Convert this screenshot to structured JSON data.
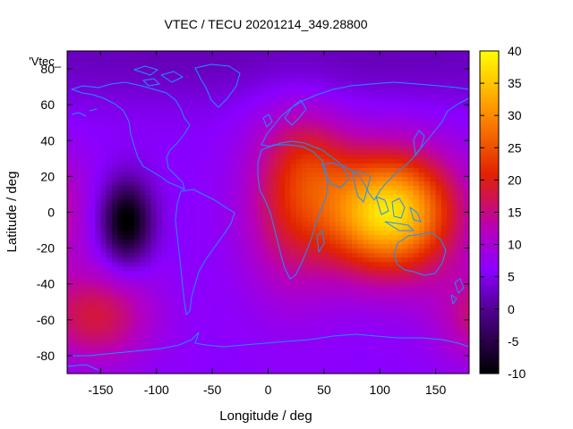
{
  "chart_data": {
    "type": "heatmap",
    "title": "VTEC / TECU 20201214_349.28800",
    "xlabel": "Longitude / deg",
    "ylabel": "Latitude / deg",
    "corner_label": "'Vtec_",
    "xlim": [
      -180,
      180
    ],
    "ylim": [
      -90,
      90
    ],
    "x_ticks": [
      -150,
      -100,
      -50,
      0,
      50,
      100,
      150
    ],
    "y_ticks": [
      -80,
      -60,
      -40,
      -20,
      0,
      20,
      40,
      60,
      80
    ],
    "x_tick_labels": [
      "-150",
      "-100",
      "-50",
      "0",
      "50",
      "100",
      "150"
    ],
    "y_tick_labels": [
      "-80",
      "-60",
      "-40",
      "-20",
      "0",
      "20",
      "40",
      "60",
      "80"
    ],
    "colorbar": {
      "range": [
        -10,
        40
      ],
      "ticks": [
        -10,
        -5,
        0,
        5,
        10,
        15,
        20,
        25,
        30,
        35,
        40
      ],
      "tick_labels": [
        "-10",
        "-5",
        "0",
        "5",
        "10",
        "15",
        "20",
        "25",
        "30",
        "35",
        "40"
      ]
    },
    "field": {
      "base": 6,
      "features": [
        {
          "name": "asia-maximum",
          "lon": 108,
          "lat": 0,
          "amp": 32,
          "sx": 42,
          "sy": 24
        },
        {
          "name": "africa-hump",
          "lon": 20,
          "lat": 5,
          "amp": 11,
          "sx": 30,
          "sy": 35
        },
        {
          "name": "europe-hump",
          "lon": 40,
          "lat": 30,
          "amp": 6,
          "sx": 25,
          "sy": 20
        },
        {
          "name": "south-pacific-hump",
          "lon": -155,
          "lat": -58,
          "amp": 12,
          "sx": 35,
          "sy": 18
        },
        {
          "name": "pacific-minimum",
          "lon": -127,
          "lat": -5,
          "amp": -17,
          "sx": 16,
          "sy": 16
        },
        {
          "name": "arctic-low",
          "lon": 0,
          "lat": 88,
          "amp": -4,
          "sx": 360,
          "sy": 20
        }
      ]
    }
  },
  "colors": {
    "coastline": "#1e90ff",
    "frame": "#000000",
    "palette": [
      "#000000",
      "#4b0082",
      "#8a00ff",
      "#b700b8",
      "#e22200",
      "#ff9600",
      "#ffff00"
    ]
  }
}
